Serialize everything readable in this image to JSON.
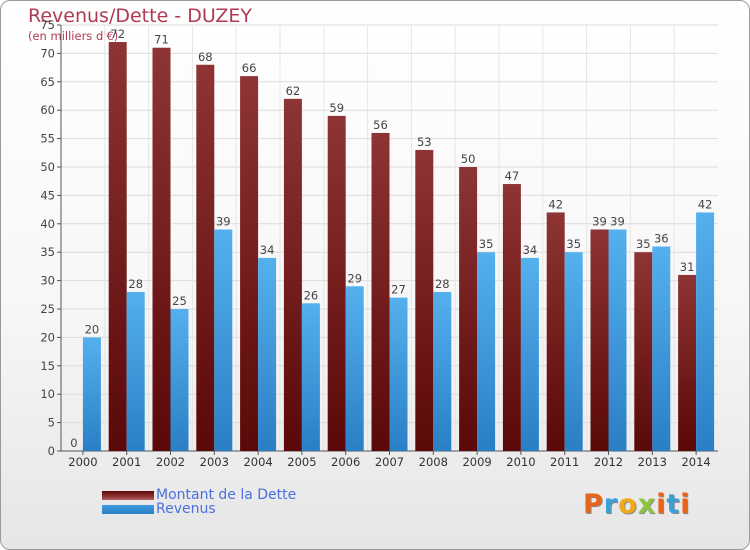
{
  "title": "Revenus/Dette - DUZEY",
  "subtitle": "(en milliers d'€)",
  "logo": {
    "text": "Proxiti",
    "colors": [
      "#e8641b",
      "#3aa0d8",
      "#f2a81d",
      "#8cc63f",
      "#e8641b",
      "#3aa0d8",
      "#e8641b"
    ]
  },
  "chart_data": {
    "type": "bar",
    "categories": [
      "2000",
      "2001",
      "2002",
      "2003",
      "2004",
      "2005",
      "2006",
      "2007",
      "2008",
      "2009",
      "2010",
      "2011",
      "2012",
      "2013",
      "2014"
    ],
    "series": [
      {
        "name": "Montant de la Dette",
        "color": "#7a1c1c",
        "values": [
          0,
          72,
          71,
          68,
          66,
          62,
          59,
          56,
          53,
          50,
          47,
          42,
          39,
          35,
          31
        ]
      },
      {
        "name": "Revenus",
        "color": "#3f9be0",
        "values": [
          20,
          28,
          25,
          39,
          34,
          26,
          29,
          27,
          28,
          35,
          34,
          35,
          39,
          36,
          42
        ]
      }
    ],
    "ylim": [
      0,
      75
    ],
    "yticks": [
      0,
      5,
      10,
      15,
      20,
      25,
      30,
      35,
      40,
      45,
      50,
      55,
      60,
      65,
      70,
      75
    ],
    "grid": true,
    "legend": "bottom-left"
  }
}
